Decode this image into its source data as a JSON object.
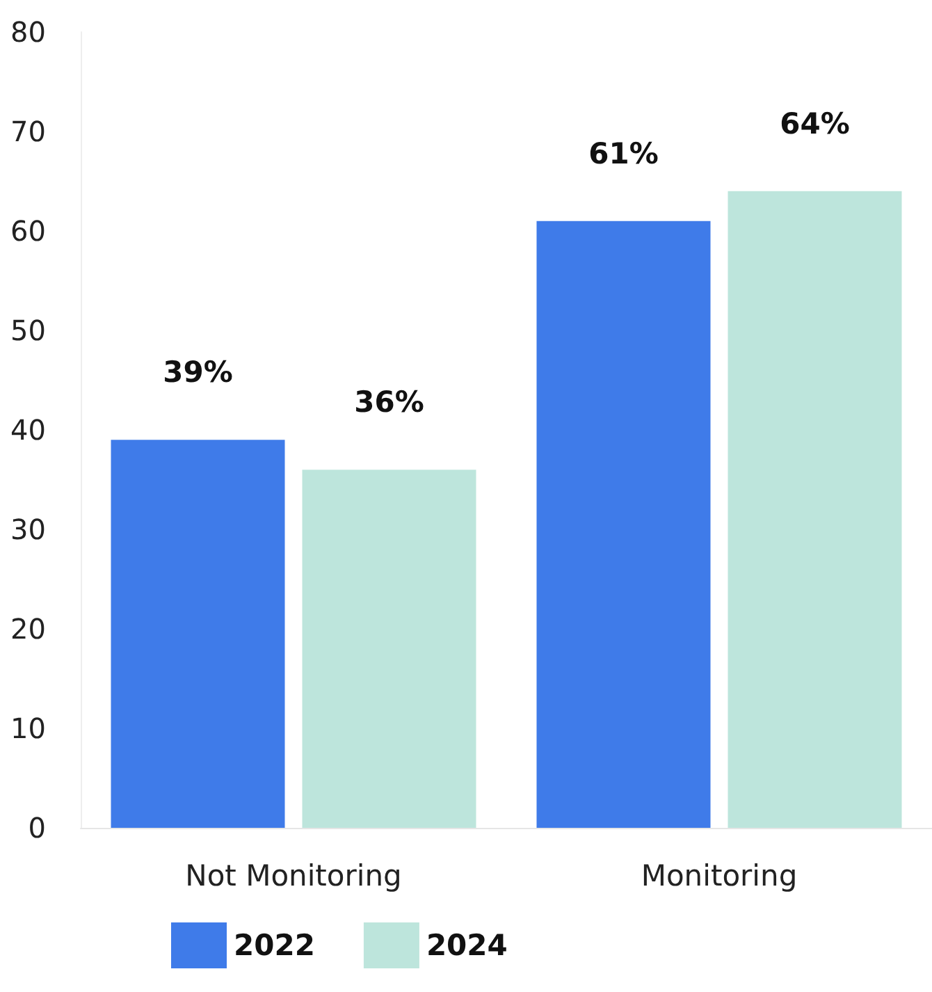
{
  "chart_data": {
    "type": "bar",
    "categories": [
      "Not Monitoring",
      "Monitoring"
    ],
    "series": [
      {
        "name": "2022",
        "color": "#3f7be9",
        "values": [
          39,
          61
        ],
        "value_labels": [
          "39%",
          "61%"
        ]
      },
      {
        "name": "2024",
        "color": "#bde5dc",
        "values": [
          36,
          64
        ],
        "value_labels": [
          "36%",
          "64%"
        ]
      }
    ],
    "ylim": [
      0,
      80
    ],
    "yticks": [
      0,
      10,
      20,
      30,
      40,
      50,
      60,
      70,
      80
    ],
    "grid": false,
    "legend": "bottom left"
  }
}
